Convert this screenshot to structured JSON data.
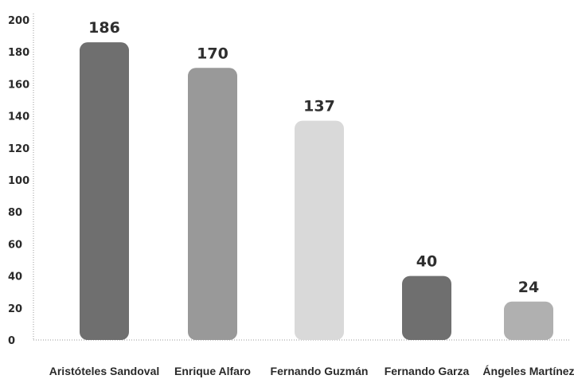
{
  "chart_data": {
    "type": "bar",
    "categories": [
      "Aristóteles Sandoval",
      "Enrique Alfaro",
      "Fernando Guzmán",
      "Fernando Garza",
      "Ángeles Martínez"
    ],
    "values": [
      186,
      170,
      137,
      40,
      24
    ],
    "value_labels": [
      "186",
      "170",
      "137",
      "40",
      "24"
    ],
    "ylim": [
      0,
      200
    ],
    "yticks": [
      "0",
      "20",
      "40",
      "60",
      "80",
      "100",
      "120",
      "140",
      "160",
      "180",
      "200"
    ],
    "bar_colors": [
      "#6f6f6f",
      "#999999",
      "#d9d9d9",
      "#6f6f6f",
      "#b0b0b0"
    ],
    "grid": false
  }
}
